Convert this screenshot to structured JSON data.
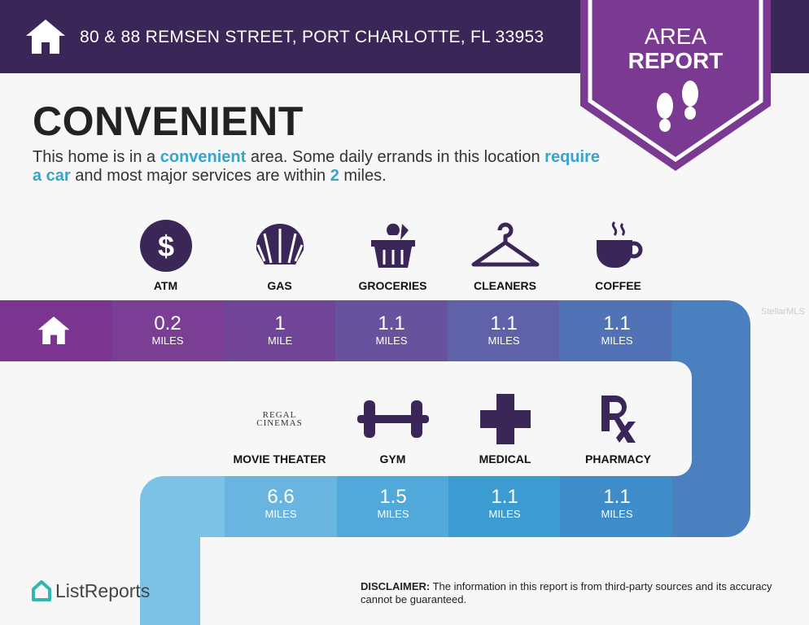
{
  "header": {
    "address": "80 & 88 REMSEN STREET, PORT CHARLOTTE, FL 33953",
    "icon": "home-icon"
  },
  "badge": {
    "line1": "AREA",
    "line2": "REPORT",
    "icon": "footprints-icon"
  },
  "rating": "CONVENIENT",
  "description": {
    "p1": "This home is in a ",
    "h1": "convenient",
    "p2": " area. Some daily errands in this location ",
    "h2": "require a car",
    "p3": " and most major services are within ",
    "h3": "2",
    "p4": " miles."
  },
  "row1": [
    {
      "label": "ATM",
      "icon": "dollar-icon",
      "value": "0.2",
      "unit": "MILES"
    },
    {
      "label": "GAS",
      "icon": "shell-icon",
      "value": "1",
      "unit": "MILE"
    },
    {
      "label": "GROCERIES",
      "icon": "basket-icon",
      "value": "1.1",
      "unit": "MILES"
    },
    {
      "label": "CLEANERS",
      "icon": "hanger-icon",
      "value": "1.1",
      "unit": "MILES"
    },
    {
      "label": "COFFEE",
      "icon": "coffee-icon",
      "value": "1.1",
      "unit": "MILES"
    }
  ],
  "row2": [
    {
      "label": "MOVIE THEATER",
      "icon": "regal-cinemas-logo",
      "logo_text": "REGAL CINEMAS",
      "value": "6.6",
      "unit": "MILES"
    },
    {
      "label": "GYM",
      "icon": "dumbbell-icon",
      "value": "1.5",
      "unit": "MILES"
    },
    {
      "label": "MEDICAL",
      "icon": "medical-cross-icon",
      "value": "1.1",
      "unit": "MILES"
    },
    {
      "label": "PHARMACY",
      "icon": "rx-icon",
      "value": "1.1",
      "unit": "MILES"
    }
  ],
  "watermark": "StellarMLS",
  "brand": "ListReports",
  "disclaimer": {
    "bold": "DISCLAIMER:",
    "text": " The information in this report is from third-party sources and its accuracy cannot be guaranteed."
  },
  "colors": {
    "header": "#3b2757",
    "badge": "#7b3a92",
    "accent": "#3aa3c9",
    "icon": "#3b2757"
  }
}
